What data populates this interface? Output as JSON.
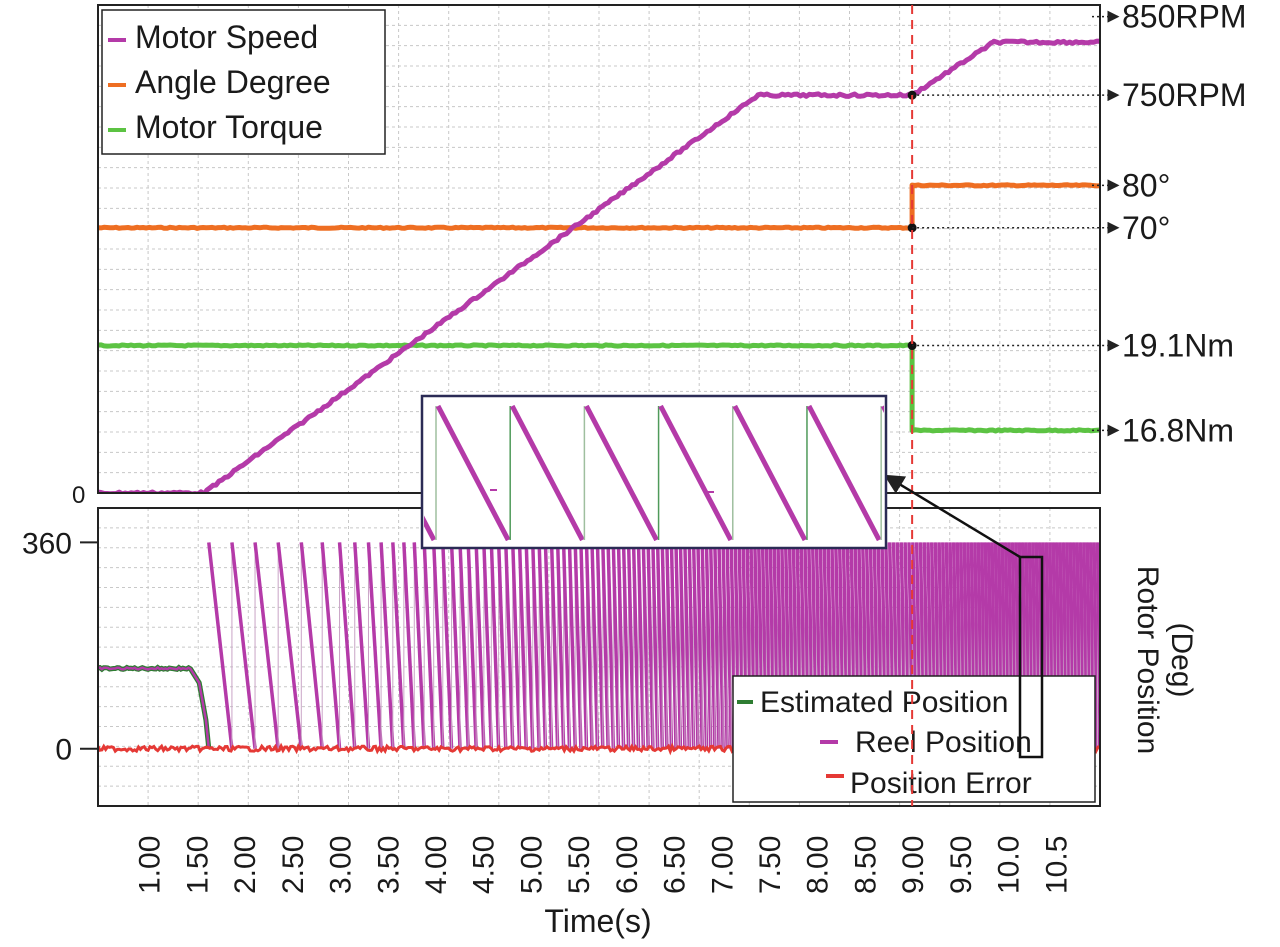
{
  "chart_data": [
    {
      "type": "line",
      "xlim": [
        0.6,
        11.0
      ],
      "ylim": [
        0,
        920
      ],
      "grid": true,
      "legend_position": "top-left",
      "y_zero_label": "0",
      "series": [
        {
          "name": "Motor Speed",
          "color": "#b43aa8",
          "x": [
            0.6,
            1.7,
            7.45,
            9.05,
            9.9,
            11.0
          ],
          "y": [
            0,
            0,
            750,
            750,
            850,
            850
          ]
        },
        {
          "name": "Angle Degree",
          "color": "#ee6e22",
          "x": [
            0.6,
            9.05,
            9.05,
            11.0
          ],
          "y": [
            500,
            500,
            580,
            580
          ]
        },
        {
          "name": "Motor Torque",
          "color": "#5cc343",
          "x": [
            0.6,
            9.05,
            9.05,
            11.0
          ],
          "y": [
            278,
            278,
            118,
            118
          ]
        }
      ],
      "annotations": [
        {
          "text": "850RPM",
          "y": 898
        },
        {
          "text": "750RPM",
          "y": 750
        },
        {
          "text": "80°",
          "y": 580
        },
        {
          "text": "70°",
          "y": 500
        },
        {
          "text": "19.1Nm",
          "y": 278
        },
        {
          "text": "16.8Nm",
          "y": 118
        }
      ],
      "event_line_x": 9.05
    },
    {
      "type": "line",
      "xlim": [
        0.6,
        11.0
      ],
      "ylim": [
        -100,
        420
      ],
      "grid": true,
      "legend_position": "bottom-right",
      "y_ticks": [
        "0",
        "360"
      ],
      "y_label_line1": "Rotor Position",
      "y_label_line2": "(Deg)",
      "x_label": "Time(s)",
      "x_tick_labels": [
        "1.00",
        "1.50",
        "2.00",
        "2.50",
        "3.00",
        "3.50",
        "4.00",
        "4.50",
        "5.00",
        "5.50",
        "6.00",
        "6.50",
        "7.00",
        "7.50",
        "8.00",
        "8.50",
        "9.00",
        "9.50",
        "10.0",
        "10.5"
      ],
      "series": [
        {
          "name": "Estimated Position",
          "color": "#2e7d32"
        },
        {
          "name": "Reel Position",
          "color": "#b43aa8"
        },
        {
          "name": "Position Error",
          "color": "#e53935"
        }
      ],
      "initial_position_deg": 140,
      "sawtooth_start_s": 1.75,
      "error_level_deg": 0
    }
  ]
}
